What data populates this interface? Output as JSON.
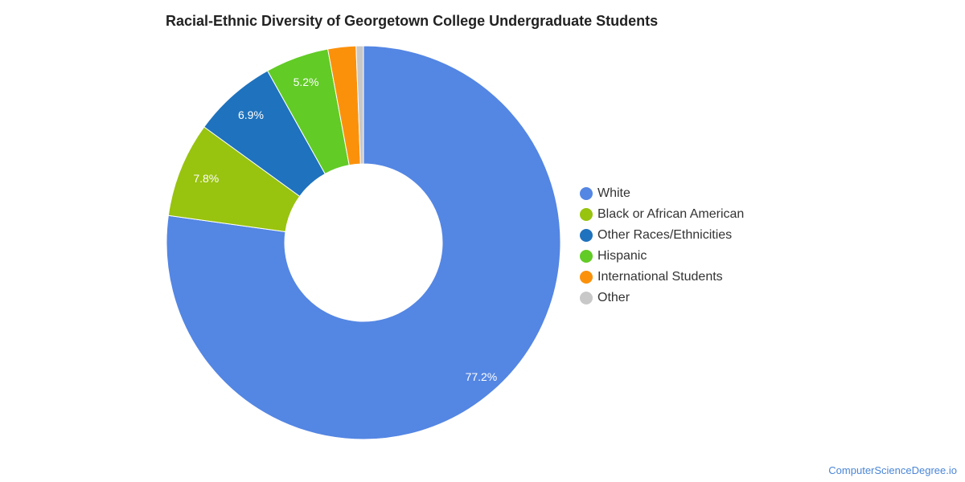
{
  "chart_data": {
    "type": "pie",
    "variant": "donut",
    "title": "Racial-Ethnic Diversity of Georgetown College Undergraduate Students",
    "slices": [
      {
        "name": "White",
        "value": 77.2,
        "color": "#5486e3",
        "label": "77.2%"
      },
      {
        "name": "Black or African American",
        "value": 7.8,
        "color": "#98c30f",
        "label": "7.8%"
      },
      {
        "name": "Other Races/Ethnicities",
        "value": 6.9,
        "color": "#1f72bd",
        "label": "6.9%"
      },
      {
        "name": "Hispanic",
        "value": 5.2,
        "color": "#62cb26",
        "label": "5.2%"
      },
      {
        "name": "International Students",
        "value": 2.3,
        "color": "#fb910b",
        "label": ""
      },
      {
        "name": "Other",
        "value": 0.6,
        "color": "#c8c8c8",
        "label": ""
      }
    ],
    "legend_position": "right"
  },
  "watermark": "ComputerScienceDegree.io"
}
